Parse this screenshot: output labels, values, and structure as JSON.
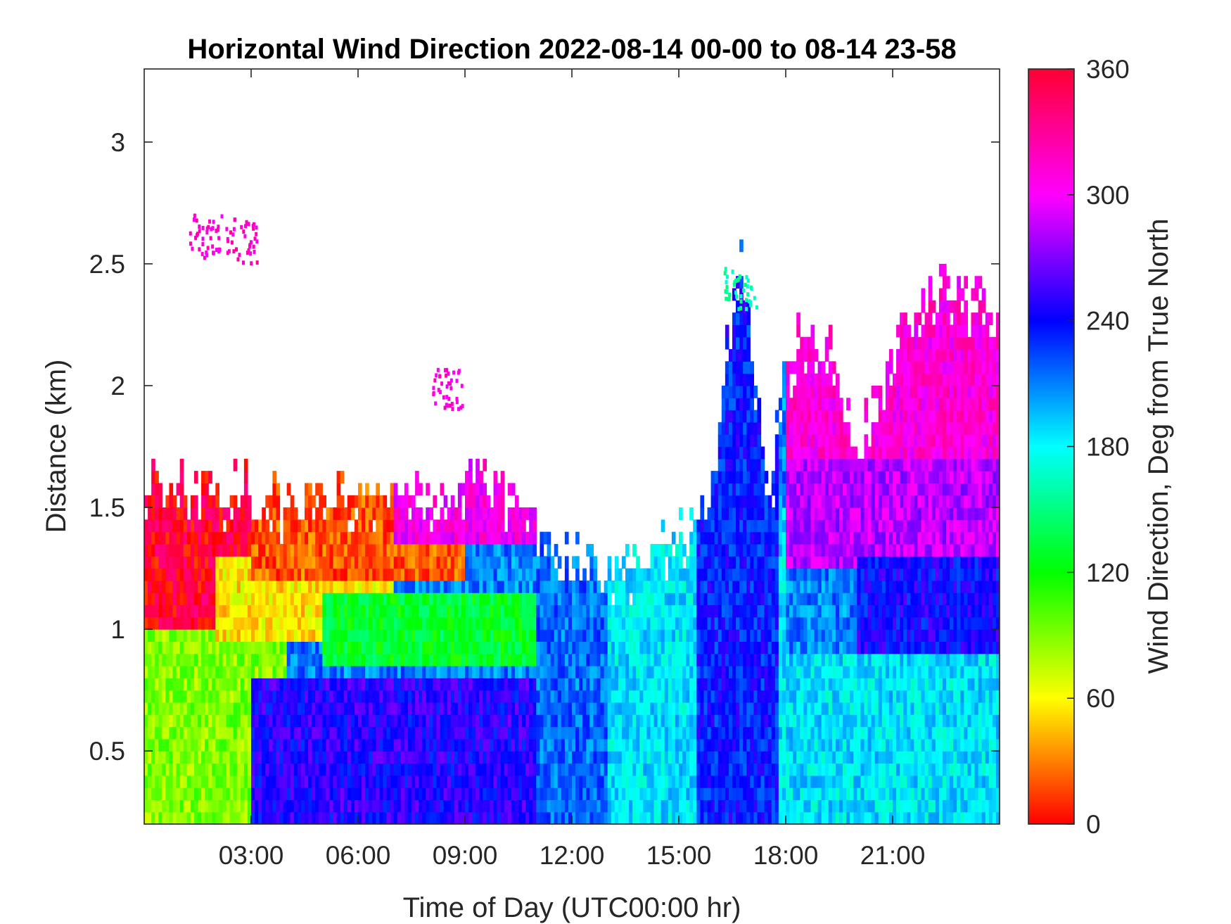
{
  "chart_data": {
    "type": "heatmap",
    "title": "Horizontal Wind Direction 2022-08-14 00-00 to 08-14 23-58",
    "xlabel": "Time of Day (UTC00:00 hr)",
    "ylabel": "Distance (km)",
    "xlim": [
      0,
      24
    ],
    "ylim": [
      0.2,
      3.3
    ],
    "x_ticks": [
      {
        "value": 3,
        "label": "03:00"
      },
      {
        "value": 6,
        "label": "06:00"
      },
      {
        "value": 9,
        "label": "09:00"
      },
      {
        "value": 12,
        "label": "12:00"
      },
      {
        "value": 15,
        "label": "15:00"
      },
      {
        "value": 18,
        "label": "18:00"
      },
      {
        "value": 21,
        "label": "21:00"
      }
    ],
    "y_ticks": [
      {
        "value": 0.5,
        "label": "0.5"
      },
      {
        "value": 1,
        "label": "1"
      },
      {
        "value": 1.5,
        "label": "1.5"
      },
      {
        "value": 2,
        "label": "2"
      },
      {
        "value": 2.5,
        "label": "2.5"
      },
      {
        "value": 3,
        "label": "3"
      }
    ],
    "colorbar": {
      "label": "Wind Direction, Deg from True North",
      "range": [
        0,
        360
      ],
      "ticks": [
        {
          "value": 0,
          "label": "0"
        },
        {
          "value": 60,
          "label": "60"
        },
        {
          "value": 120,
          "label": "120"
        },
        {
          "value": 180,
          "label": "180"
        },
        {
          "value": 240,
          "label": "240"
        },
        {
          "value": 300,
          "label": "300"
        },
        {
          "value": 360,
          "label": "360"
        }
      ],
      "colors": [
        "#ff0000",
        "#ffff00",
        "#00ff00",
        "#00ffff",
        "#0000ff",
        "#ff00ff",
        "#ff0033"
      ]
    },
    "data_top_km": [
      {
        "x": 0.0,
        "y": 1.65
      },
      {
        "x": 1.0,
        "y": 1.62
      },
      {
        "x": 2.0,
        "y": 1.58
      },
      {
        "x": 3.0,
        "y": 1.6
      },
      {
        "x": 4.0,
        "y": 1.58
      },
      {
        "x": 5.0,
        "y": 1.6
      },
      {
        "x": 6.0,
        "y": 1.58
      },
      {
        "x": 7.0,
        "y": 1.6
      },
      {
        "x": 8.0,
        "y": 1.58
      },
      {
        "x": 9.0,
        "y": 1.65
      },
      {
        "x": 10.0,
        "y": 1.62
      },
      {
        "x": 10.5,
        "y": 1.55
      },
      {
        "x": 11.0,
        "y": 1.45
      },
      {
        "x": 11.5,
        "y": 1.38
      },
      {
        "x": 12.0,
        "y": 1.35
      },
      {
        "x": 12.5,
        "y": 1.32
      },
      {
        "x": 13.0,
        "y": 1.3
      },
      {
        "x": 13.5,
        "y": 1.28
      },
      {
        "x": 14.0,
        "y": 1.32
      },
      {
        "x": 14.5,
        "y": 1.4
      },
      {
        "x": 15.0,
        "y": 1.42
      },
      {
        "x": 15.5,
        "y": 1.45
      },
      {
        "x": 16.0,
        "y": 1.6
      },
      {
        "x": 16.3,
        "y": 2.2
      },
      {
        "x": 16.7,
        "y": 2.55
      },
      {
        "x": 17.0,
        "y": 2.3
      },
      {
        "x": 17.3,
        "y": 1.75
      },
      {
        "x": 17.6,
        "y": 1.6
      },
      {
        "x": 17.9,
        "y": 2.1
      },
      {
        "x": 18.5,
        "y": 2.25
      },
      {
        "x": 19.2,
        "y": 2.2
      },
      {
        "x": 19.7,
        "y": 1.9
      },
      {
        "x": 20.1,
        "y": 1.75
      },
      {
        "x": 20.5,
        "y": 2.05
      },
      {
        "x": 21.0,
        "y": 2.15
      },
      {
        "x": 21.5,
        "y": 2.3
      },
      {
        "x": 22.0,
        "y": 2.45
      },
      {
        "x": 22.5,
        "y": 2.45
      },
      {
        "x": 23.0,
        "y": 2.4
      },
      {
        "x": 24.0,
        "y": 2.4
      }
    ],
    "clouds": [
      {
        "x": 1.7,
        "y": 2.62,
        "direction_deg": 310
      },
      {
        "x": 2.7,
        "y": 2.6,
        "direction_deg": 315
      },
      {
        "x": 16.7,
        "y": 2.4,
        "direction_deg": 160
      },
      {
        "x": 8.5,
        "y": 2.0,
        "direction_deg": 310
      }
    ],
    "regions": [
      {
        "x0": 0,
        "x1": 24,
        "y0": 0.2,
        "y1": 3.3,
        "direction_deg": 210
      },
      {
        "x0": 0,
        "x1": 4,
        "y0": 0.2,
        "y1": 1.8,
        "direction_deg": 90
      },
      {
        "x0": 0,
        "x1": 3,
        "y0": 1.0,
        "y1": 1.8,
        "direction_deg": 355
      },
      {
        "x0": 2,
        "x1": 7,
        "y0": 0.95,
        "y1": 1.3,
        "direction_deg": 55
      },
      {
        "x0": 3,
        "x1": 9,
        "y0": 1.2,
        "y1": 1.8,
        "direction_deg": 20
      },
      {
        "x0": 7,
        "x1": 11,
        "y0": 1.35,
        "y1": 1.8,
        "direction_deg": 305
      },
      {
        "x0": 5,
        "x1": 11,
        "y0": 0.85,
        "y1": 1.15,
        "direction_deg": 130
      },
      {
        "x0": 3,
        "x1": 11,
        "y0": 0.2,
        "y1": 0.8,
        "direction_deg": 248
      },
      {
        "x0": 11,
        "x1": 14,
        "y0": 0.2,
        "y1": 1.4,
        "direction_deg": 215
      },
      {
        "x0": 13,
        "x1": 18,
        "y0": 0.2,
        "y1": 1.5,
        "direction_deg": 185
      },
      {
        "x0": 15.5,
        "x1": 17.8,
        "y0": 0.2,
        "y1": 2.5,
        "direction_deg": 235
      },
      {
        "x0": 18,
        "x1": 24,
        "y0": 1.7,
        "y1": 2.5,
        "direction_deg": 310
      },
      {
        "x0": 18,
        "x1": 24,
        "y0": 1.25,
        "y1": 1.7,
        "direction_deg": 285
      },
      {
        "x0": 20,
        "x1": 24,
        "y0": 0.9,
        "y1": 1.3,
        "direction_deg": 242
      },
      {
        "x0": 18,
        "x1": 24,
        "y0": 0.2,
        "y1": 0.9,
        "direction_deg": 185
      }
    ]
  }
}
